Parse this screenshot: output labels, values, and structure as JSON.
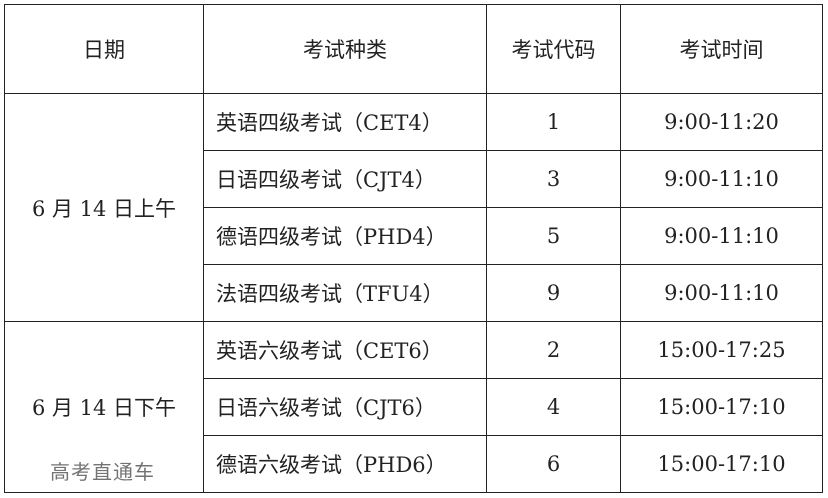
{
  "headers": [
    "日期",
    "考试种类",
    "考试代码",
    "考试时间"
  ],
  "groups": [
    {
      "date": "6 月 14 日上午",
      "rows": [
        {
          "type": "英语四级考试（CET4）",
          "code": "1",
          "time": "9:00-11:20"
        },
        {
          "type": "日语四级考试（CJT4）",
          "code": "3",
          "time": "9:00-11:10"
        },
        {
          "type": "德语四级考试（PHD4）",
          "code": "5",
          "time": "9:00-11:10"
        },
        {
          "type": "法语四级考试（TFU4）",
          "code": "9",
          "time": "9:00-11:10"
        }
      ]
    },
    {
      "date": "6 月 14 日下午",
      "rows": [
        {
          "type": "英语六级考试（CET6）",
          "code": "2",
          "time": "15:00-17:25"
        },
        {
          "type": "日语六级考试（CJT6）",
          "code": "4",
          "time": "15:00-17:10"
        },
        {
          "type": "德语六级考试（PHD6）",
          "code": "6",
          "time": "15:00-17:10"
        }
      ]
    }
  ],
  "watermark": "高考直通车"
}
